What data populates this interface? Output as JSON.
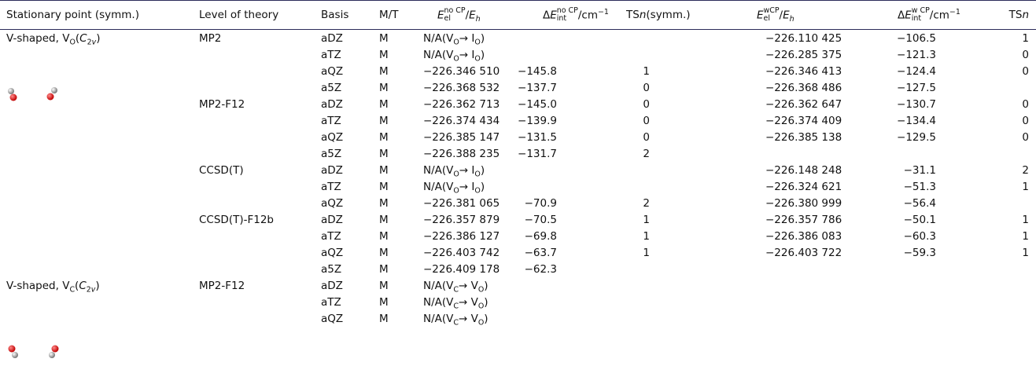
{
  "header": [
    "Stationary point (symm.)",
    "Level of theory",
    "Basis",
    "M/T",
    {
      "symbol": "E",
      "sub": "el",
      "sup": "no CP",
      "per": "/",
      "unit": "E",
      "unit_sub": "h"
    },
    {
      "delta": "Δ",
      "symbol": "E",
      "sub": "int",
      "sup": "no CP",
      "per": "/",
      "unit": "cm",
      "unit_sup": "−1"
    },
    {
      "text": "TS",
      "var": "n",
      "rest": "(symm.)"
    },
    {
      "symbol": "E",
      "sub": "el",
      "sup": "wCP",
      "per": "/",
      "unit": "E",
      "unit_sub": "h"
    },
    {
      "delta": "Δ",
      "symbol": "E",
      "sub": "int",
      "sup": "w CP",
      "per": "/",
      "unit": "cm",
      "unit_sup": "−1"
    },
    {
      "text": "TS",
      "var": "n"
    }
  ],
  "rows": [
    [
      [
        "V-shaped, V",
        {
          "sub": "O"
        },
        "(",
        {
          "i": "C"
        },
        {
          "sub": "2"
        },
        {
          "sub_i": "v"
        },
        ")"
      ],
      "MP2",
      "aDZ",
      "M",
      [
        "N/A(V",
        {
          "sub": "O"
        },
        "→ I",
        {
          "sub": "O"
        },
        ")"
      ],
      null,
      null,
      "−226.110 425",
      "−106.5",
      "1"
    ],
    [
      null,
      null,
      "aTZ",
      "M",
      [
        "N/A(V",
        {
          "sub": "O"
        },
        "→ I",
        {
          "sub": "O"
        },
        ")"
      ],
      null,
      null,
      "−226.285 375",
      "−121.3",
      "0"
    ],
    [
      null,
      null,
      "aQZ",
      "M",
      "−226.346 510",
      "−145.8",
      "1",
      "−226.346 413",
      "−124.4",
      "0"
    ],
    [
      null,
      null,
      "a5Z",
      "M",
      "−226.368 532",
      "−137.7",
      "0",
      "−226.368 486",
      "−127.5",
      null
    ],
    [
      null,
      "MP2-F12",
      "aDZ",
      "M",
      "−226.362 713",
      "−145.0",
      "0",
      "−226.362 647",
      "−130.7",
      "0"
    ],
    [
      null,
      null,
      "aTZ",
      "M",
      "−226.374 434",
      "−139.9",
      "0",
      "−226.374 409",
      "−134.4",
      "0"
    ],
    [
      null,
      null,
      "aQZ",
      "M",
      "−226.385 147",
      "−131.5",
      "0",
      "−226.385 138",
      "−129.5",
      "0"
    ],
    [
      null,
      null,
      "a5Z",
      "M",
      "−226.388 235",
      "−131.7",
      "2",
      null,
      null,
      null
    ],
    [
      null,
      "CCSD(T)",
      "aDZ",
      "M",
      [
        "N/A(V",
        {
          "sub": "O"
        },
        "→ I",
        {
          "sub": "O"
        },
        ")"
      ],
      null,
      null,
      "−226.148 248",
      "−31.1",
      "2"
    ],
    [
      null,
      null,
      "aTZ",
      "M",
      [
        "N/A(V",
        {
          "sub": "O"
        },
        "→ I",
        {
          "sub": "O"
        },
        ")"
      ],
      null,
      null,
      "−226.324 621",
      "−51.3",
      "1"
    ],
    [
      null,
      null,
      "aQZ",
      "M",
      "−226.381 065",
      "−70.9",
      "2",
      "−226.380 999",
      "−56.4",
      null
    ],
    [
      null,
      "CCSD(T)-F12b",
      "aDZ",
      "M",
      "−226.357 879",
      "−70.5",
      "1",
      "−226.357 786",
      "−50.1",
      "1"
    ],
    [
      null,
      null,
      "aTZ",
      "M",
      "−226.386 127",
      "−69.8",
      "1",
      "−226.386 083",
      "−60.3",
      "1"
    ],
    [
      null,
      null,
      "aQZ",
      "M",
      "−226.403 742",
      "−63.7",
      "1",
      "−226.403 722",
      "−59.3",
      "1"
    ],
    [
      null,
      null,
      "a5Z",
      "M",
      "−226.409 178",
      "−62.3",
      null,
      null,
      null,
      null
    ],
    [
      [
        "V-shaped, V",
        {
          "sub": "C"
        },
        "(",
        {
          "i": "C"
        },
        {
          "sub": "2"
        },
        {
          "sub_i": "v"
        },
        ")"
      ],
      "MP2-F12",
      "aDZ",
      "M",
      [
        "N/A(V",
        {
          "sub": "C"
        },
        "→ V",
        {
          "sub": "O"
        },
        ")"
      ],
      null,
      null,
      null,
      null,
      null
    ],
    [
      null,
      null,
      "aTZ",
      "M",
      [
        "N/A(V",
        {
          "sub": "C"
        },
        "→ V",
        {
          "sub": "O"
        },
        ")"
      ],
      null,
      null,
      null,
      null,
      null
    ],
    [
      null,
      null,
      "aQZ",
      "M",
      [
        "N/A(V",
        {
          "sub": "C"
        },
        "→ V",
        {
          "sub": "O"
        },
        ")"
      ],
      null,
      null,
      null,
      null,
      null
    ]
  ]
}
